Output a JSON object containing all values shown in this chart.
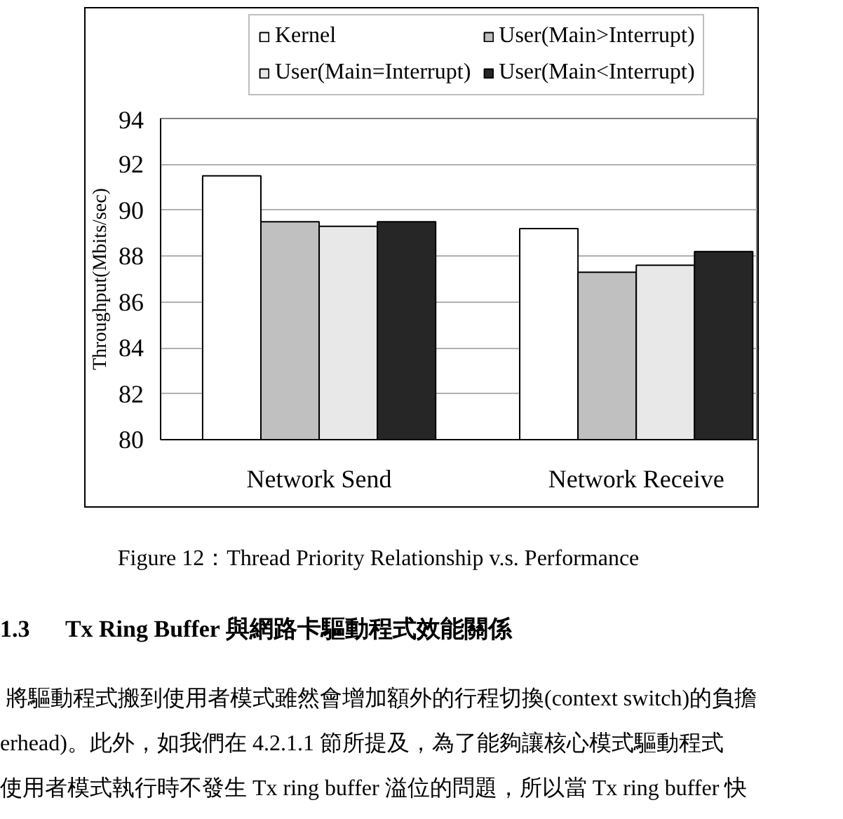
{
  "chart_data": {
    "type": "bar",
    "ylabel": "Throughput(Mbits/sec)",
    "categories": [
      "Network Send",
      "Network Receive"
    ],
    "series": [
      {
        "name": "Kernel",
        "color": "#ffffff",
        "values": [
          91.5,
          89.2
        ]
      },
      {
        "name": "User(Main>Interrupt)",
        "color": "#c0c0c0",
        "values": [
          89.5,
          87.3
        ]
      },
      {
        "name": "User(Main=Interrupt)",
        "color": "#e8e8e8",
        "values": [
          89.3,
          87.6
        ]
      },
      {
        "name": "User(Main<Interrupt)",
        "color": "#262626",
        "values": [
          89.5,
          88.2
        ]
      }
    ],
    "ylim": [
      80,
      94
    ],
    "yticks": [
      80,
      82,
      84,
      86,
      88,
      90,
      92,
      94
    ],
    "grid": "y",
    "legend": "top",
    "annotations": [
      "Figure 12：Thread Priority Relationship v.s. Performance",
      "1.3      Tx Ring Buffer 與網路卡驅動程式效能關係",
      "將驅動程式搬到使用者模式雖然會增加額外的行程切換(context switch)的負擔",
      "erhead)。此外，如我們在 4.2.1.1 節所提及，為了能夠讓核心模式驅動程式",
      "使用者模式執行時不發生 Tx ring buffer 溢位的問題，所以當 Tx ring buffer 快"
    ]
  }
}
